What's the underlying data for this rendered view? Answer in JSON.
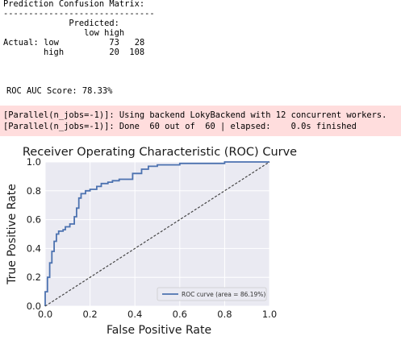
{
  "console": {
    "matrix_title": "Prediction Confusion Matrix:",
    "separator": "------------------------------",
    "predicted_header": "Predicted:",
    "col_low": "low",
    "col_high": "high",
    "actual_label": "Actual:",
    "row_low": "low",
    "row_high": "high",
    "cells": [
      [
        "73",
        "28"
      ],
      [
        "20",
        "108"
      ]
    ],
    "auc_text": "ROC AUC Score: 78.33%"
  },
  "stderr": {
    "line1": "[Parallel(n_jobs=-1)]: Using backend LokyBackend with 12 concurrent workers.",
    "line2": "[Parallel(n_jobs=-1)]: Done  60 out of  60 | elapsed:    0.0s finished"
  },
  "chart_data": {
    "type": "line",
    "title": "Receiver Operating Characteristic (ROC) Curve",
    "xlabel": "False Positive Rate",
    "ylabel": "True Positive Rate",
    "xlim": [
      0.0,
      1.0
    ],
    "ylim": [
      0.0,
      1.0
    ],
    "xticks": [
      "0.0",
      "0.2",
      "0.4",
      "0.6",
      "0.8",
      "1.0"
    ],
    "yticks": [
      "0.0",
      "0.2",
      "0.4",
      "0.6",
      "0.8",
      "1.0"
    ],
    "grid": true,
    "legend_position": "lower-right",
    "series": [
      {
        "name": "ROC curve (area = 86.19%)",
        "color": "#4c72b0",
        "style": "solid",
        "x": [
          0.0,
          0.0,
          0.01,
          0.01,
          0.02,
          0.02,
          0.03,
          0.03,
          0.04,
          0.04,
          0.05,
          0.05,
          0.06,
          0.06,
          0.08,
          0.08,
          0.09,
          0.09,
          0.11,
          0.11,
          0.13,
          0.13,
          0.14,
          0.14,
          0.15,
          0.15,
          0.16,
          0.16,
          0.18,
          0.18,
          0.2,
          0.2,
          0.23,
          0.23,
          0.25,
          0.25,
          0.28,
          0.28,
          0.3,
          0.3,
          0.33,
          0.33,
          0.39,
          0.39,
          0.43,
          0.43,
          0.46,
          0.46,
          0.5,
          0.5,
          0.6,
          0.6,
          0.8,
          0.8,
          1.0
        ],
        "y": [
          0.0,
          0.1,
          0.1,
          0.2,
          0.2,
          0.3,
          0.3,
          0.38,
          0.38,
          0.45,
          0.45,
          0.5,
          0.5,
          0.52,
          0.52,
          0.53,
          0.53,
          0.55,
          0.55,
          0.57,
          0.57,
          0.62,
          0.62,
          0.68,
          0.68,
          0.75,
          0.75,
          0.78,
          0.78,
          0.8,
          0.8,
          0.81,
          0.81,
          0.83,
          0.83,
          0.85,
          0.85,
          0.86,
          0.86,
          0.87,
          0.87,
          0.88,
          0.88,
          0.92,
          0.92,
          0.95,
          0.95,
          0.97,
          0.97,
          0.98,
          0.98,
          0.99,
          0.99,
          1.0,
          1.0
        ]
      },
      {
        "name": "",
        "color": "#444444",
        "style": "dashed",
        "x": [
          0.0,
          1.0
        ],
        "y": [
          0.0,
          1.0
        ]
      }
    ]
  }
}
